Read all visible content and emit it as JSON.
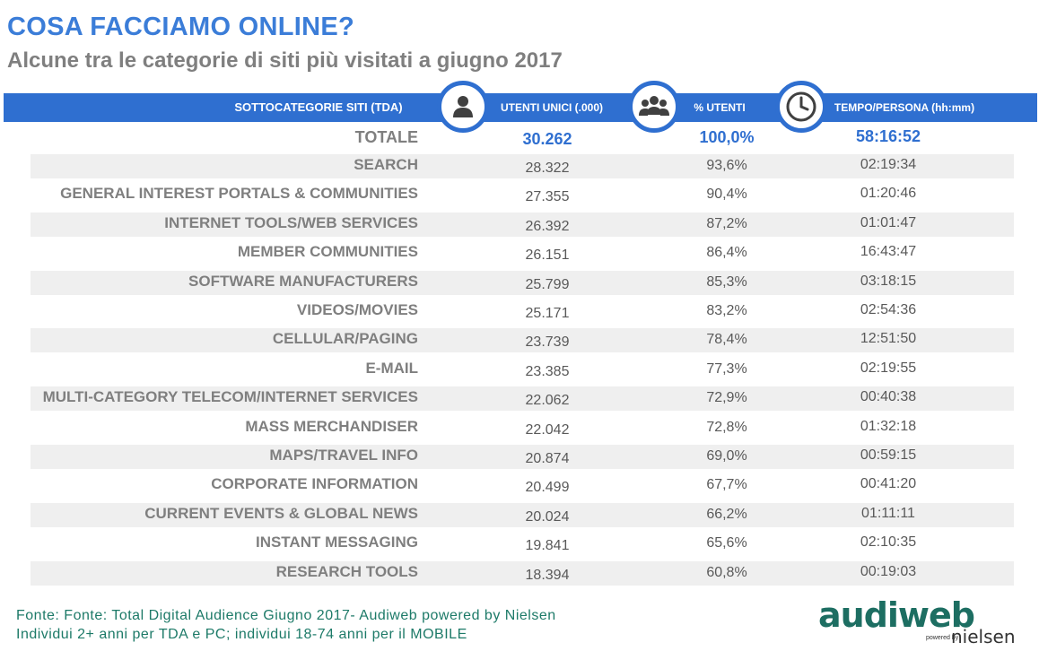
{
  "title": "COSA FACCIAMO ONLINE?",
  "subtitle": "Alcune tra le categorie di siti più visitati a giugno 2017",
  "header": {
    "category": "SOTTOCATEGORIE SITI  (TDA)",
    "unique_users": "UTENTI UNICI (.000)",
    "pct_users": "% UTENTI",
    "time_per_person": "TEMPO/PERSONA (hh:mm)"
  },
  "icons": {
    "unique_users": "person-icon",
    "pct_users": "group-icon",
    "time_per_person": "clock-icon"
  },
  "colors": {
    "accent": "#2f6fd0",
    "title": "#3b7dd8",
    "subtitle": "#7f7f7f",
    "source": "#1d7a68",
    "row_stripe": "#efefef"
  },
  "total": {
    "category": "TOTALE",
    "unique_users": "30.262",
    "pct_users": "100,0%",
    "time_per_person": "58:16:52"
  },
  "rows": [
    {
      "category": "SEARCH",
      "unique_users": "28.322",
      "pct_users": "93,6%",
      "time_per_person": "02:19:34"
    },
    {
      "category": "GENERAL INTEREST PORTALS & COMMUNITIES",
      "unique_users": "27.355",
      "pct_users": "90,4%",
      "time_per_person": "01:20:46"
    },
    {
      "category": "INTERNET TOOLS/WEB SERVICES",
      "unique_users": "26.392",
      "pct_users": "87,2%",
      "time_per_person": "01:01:47"
    },
    {
      "category": "MEMBER COMMUNITIES",
      "unique_users": "26.151",
      "pct_users": "86,4%",
      "time_per_person": "16:43:47"
    },
    {
      "category": "SOFTWARE MANUFACTURERS",
      "unique_users": "25.799",
      "pct_users": "85,3%",
      "time_per_person": "03:18:15"
    },
    {
      "category": "VIDEOS/MOVIES",
      "unique_users": "25.171",
      "pct_users": "83,2%",
      "time_per_person": "02:54:36"
    },
    {
      "category": "CELLULAR/PAGING",
      "unique_users": "23.739",
      "pct_users": "78,4%",
      "time_per_person": "12:51:50"
    },
    {
      "category": "E-MAIL",
      "unique_users": "23.385",
      "pct_users": "77,3%",
      "time_per_person": "02:19:55"
    },
    {
      "category": "MULTI-CATEGORY TELECOM/INTERNET SERVICES",
      "unique_users": "22.062",
      "pct_users": "72,9%",
      "time_per_person": "00:40:38"
    },
    {
      "category": "MASS MERCHANDISER",
      "unique_users": "22.042",
      "pct_users": "72,8%",
      "time_per_person": "01:32:18"
    },
    {
      "category": "MAPS/TRAVEL INFO",
      "unique_users": "20.874",
      "pct_users": "69,0%",
      "time_per_person": "00:59:15"
    },
    {
      "category": "CORPORATE INFORMATION",
      "unique_users": "20.499",
      "pct_users": "67,7%",
      "time_per_person": "00:41:20"
    },
    {
      "category": "CURRENT EVENTS & GLOBAL NEWS",
      "unique_users": "20.024",
      "pct_users": "66,2%",
      "time_per_person": "01:11:11"
    },
    {
      "category": "INSTANT MESSAGING",
      "unique_users": "19.841",
      "pct_users": "65,6%",
      "time_per_person": "02:10:35"
    },
    {
      "category": "RESEARCH TOOLS",
      "unique_users": "18.394",
      "pct_users": "60,8%",
      "time_per_person": "00:19:03"
    }
  ],
  "source": {
    "line1": "Fonte: Fonte: Total Digital Audience Giugno 2017- Audiweb powered by Nielsen",
    "line2": "Individui 2+ anni per TDA e PC; individui 18-74 anni per il MOBILE"
  },
  "logo": {
    "main": "audiweb",
    "powered": "powered by",
    "partner": "nielsen"
  }
}
